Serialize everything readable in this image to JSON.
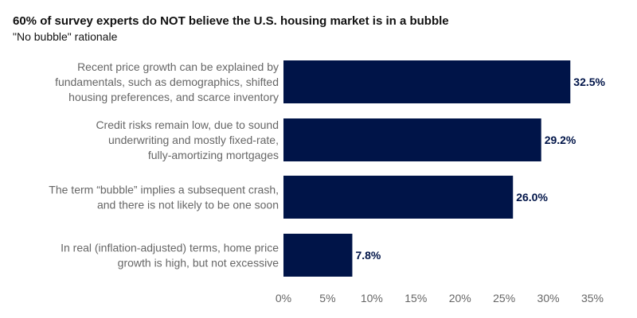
{
  "chart_data": {
    "type": "bar",
    "orientation": "horizontal",
    "title": "60% of survey experts do NOT believe the U.S. housing market is in a bubble",
    "subtitle": "\"No bubble\" rationale",
    "categories": [
      [
        "Recent price growth can be explained by",
        "fundamentals, such as demographics, shifted",
        "housing preferences, and scarce inventory"
      ],
      [
        "Credit risks remain low, due to sound",
        "underwriting and mostly fixed-rate,",
        "fully-amortizing mortgages"
      ],
      [
        "The term “bubble” implies a subsequent crash,",
        "and there is not likely to be one soon"
      ],
      [
        "In real (inflation-adjusted) terms, home price",
        "growth is high, but not excessive"
      ]
    ],
    "values": [
      32.5,
      29.2,
      26.0,
      7.8
    ],
    "value_labels": [
      "32.5%",
      "29.2%",
      "26.0%",
      "7.8%"
    ],
    "xlim": [
      0,
      35
    ],
    "x_ticks": [
      0,
      5,
      10,
      15,
      20,
      25,
      30,
      35
    ],
    "x_tick_labels": [
      "0%",
      "5%",
      "10%",
      "15%",
      "20%",
      "25%",
      "30%",
      "35%"
    ],
    "grid": false,
    "legend": "none",
    "colors": {
      "bar": "#001448",
      "value_label": "#001448"
    }
  }
}
